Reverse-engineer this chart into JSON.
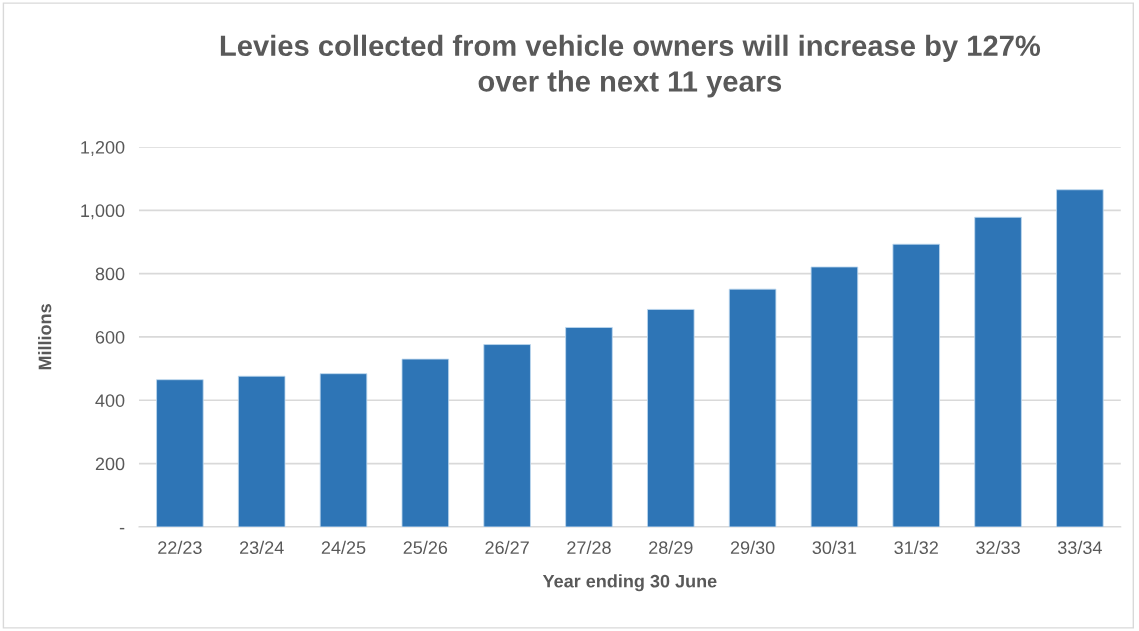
{
  "chart_data": {
    "type": "bar",
    "title": "Levies collected from vehicle owners will increase by 127%\nover the next 11 years",
    "xlabel": "Year ending 30 June",
    "ylabel": "Millions",
    "categories": [
      "22/23",
      "23/24",
      "24/25",
      "25/26",
      "26/27",
      "27/28",
      "28/29",
      "29/30",
      "30/31",
      "31/32",
      "32/33",
      "33/34"
    ],
    "values": [
      465,
      476,
      484,
      530,
      576,
      630,
      687,
      751,
      821,
      893,
      978,
      1065
    ],
    "color": "#2e75b6",
    "ylim": [
      0,
      1200
    ],
    "yticks": [
      {
        "value": 0,
        "label": "-"
      },
      {
        "value": 200,
        "label": "200"
      },
      {
        "value": 400,
        "label": "400"
      },
      {
        "value": 600,
        "label": "600"
      },
      {
        "value": 800,
        "label": "800"
      },
      {
        "value": 1000,
        "label": "1,000"
      },
      {
        "value": 1200,
        "label": "1,200"
      }
    ],
    "grid": "y"
  }
}
